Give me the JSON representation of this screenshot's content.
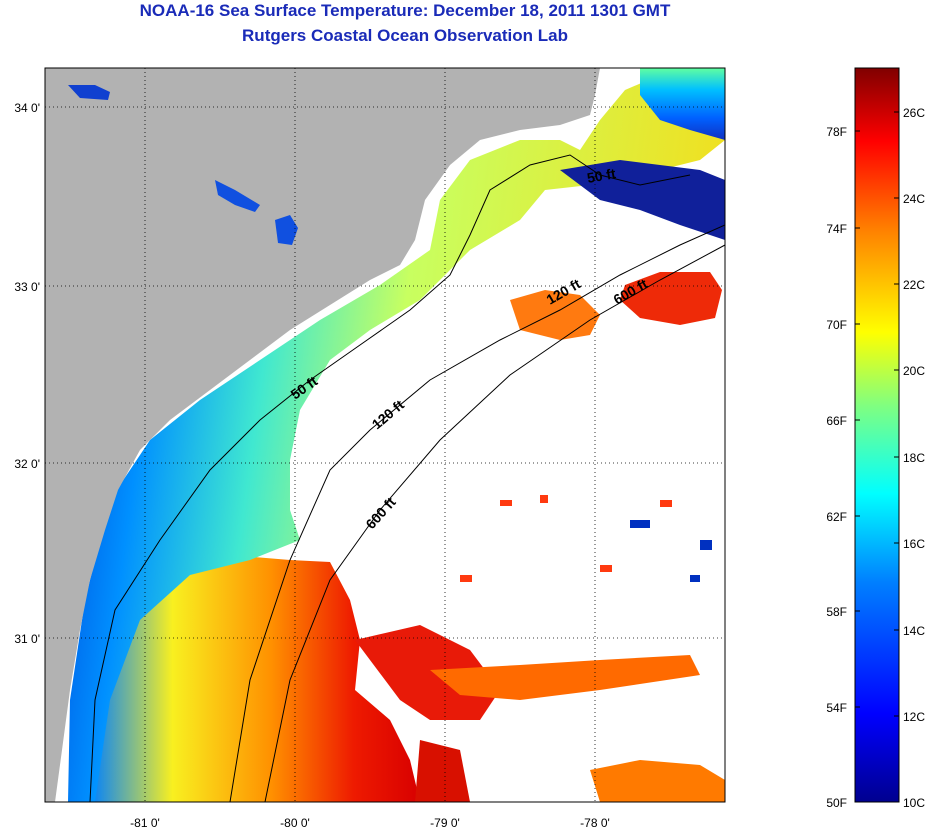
{
  "header": {
    "title": "NOAA-16 Sea Surface Temperature:  December 18, 2011 1301 GMT",
    "subtitle": "Rutgers Coastal Ocean Observation Lab"
  },
  "map": {
    "lat_ticks": [
      "34 0'",
      "33 0'",
      "32 0'",
      "31 0'"
    ],
    "lon_ticks": [
      "-81 0'",
      "-80 0'",
      "-79 0'",
      "-78 0'"
    ],
    "contour_labels": [
      "50 ft",
      "120 ft",
      "600 ft",
      "50 ft",
      "120 ft",
      "600 ft"
    ],
    "colors": {
      "land": "#b2b2b2",
      "cloud": "#ffffff",
      "coast_line": "#000000"
    }
  },
  "colorbar": {
    "f_labels": [
      "78F",
      "74F",
      "70F",
      "66F",
      "62F",
      "58F",
      "54F",
      "50F"
    ],
    "c_labels": [
      "26C",
      "24C",
      "22C",
      "20C",
      "18C",
      "16C",
      "14C",
      "12C",
      "10C"
    ],
    "colors": [
      "#00008f",
      "#0000ff",
      "#0080ff",
      "#00ffff",
      "#80ff80",
      "#ffff00",
      "#ff8000",
      "#ff0000",
      "#800000"
    ]
  }
}
